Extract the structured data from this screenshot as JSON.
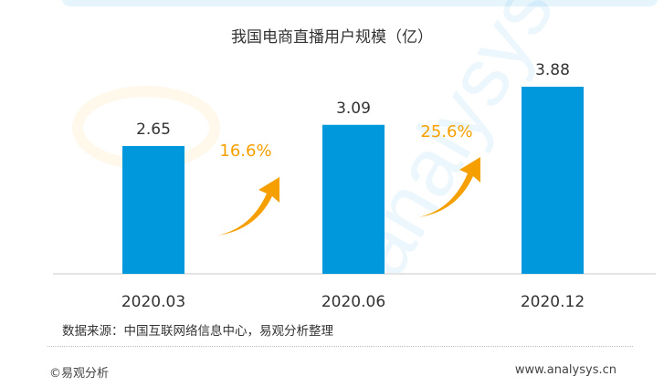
{
  "chart_data": {
    "type": "bar",
    "title": "我国电商直播用户规模（亿）",
    "categories": [
      "2020.03",
      "2020.06",
      "2020.12"
    ],
    "values": [
      2.65,
      3.09,
      3.88
    ],
    "growth_labels": [
      "16.6%",
      "25.6%"
    ],
    "xlabel": "",
    "ylabel": "",
    "ylim": [
      0,
      4.5
    ],
    "grid": false,
    "colors": {
      "bar": "#0098dc",
      "growth": "#f5a000"
    }
  },
  "source": "数据来源：中国互联网络信息中心，易观分析整理",
  "footer": {
    "copyright": "©易观分析",
    "url": "www.analysys.cn"
  },
  "watermark": "analysys 易观分析"
}
